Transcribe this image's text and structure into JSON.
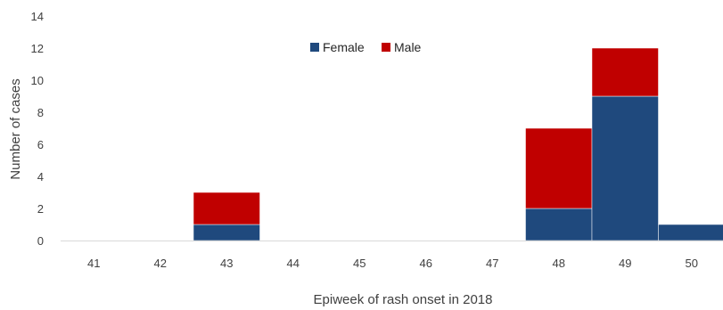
{
  "chart_data": {
    "type": "bar",
    "stacked": true,
    "categories": [
      "41",
      "42",
      "43",
      "44",
      "45",
      "46",
      "47",
      "48",
      "49",
      "50"
    ],
    "series": [
      {
        "name": "Female",
        "color": "#1f497d",
        "values": [
          0,
          0,
          1,
          0,
          0,
          0,
          0,
          2,
          9,
          1
        ]
      },
      {
        "name": "Male",
        "color": "#c00000",
        "values": [
          0,
          0,
          2,
          0,
          0,
          0,
          0,
          5,
          3,
          0
        ]
      }
    ],
    "title": "",
    "xlabel": "Epiweek of rash onset in 2018",
    "ylabel": "Number of cases",
    "ylim": [
      0,
      14
    ],
    "yticks": [
      0,
      2,
      4,
      6,
      8,
      10,
      12,
      14
    ],
    "grid": false,
    "legend_position": "top-center"
  }
}
